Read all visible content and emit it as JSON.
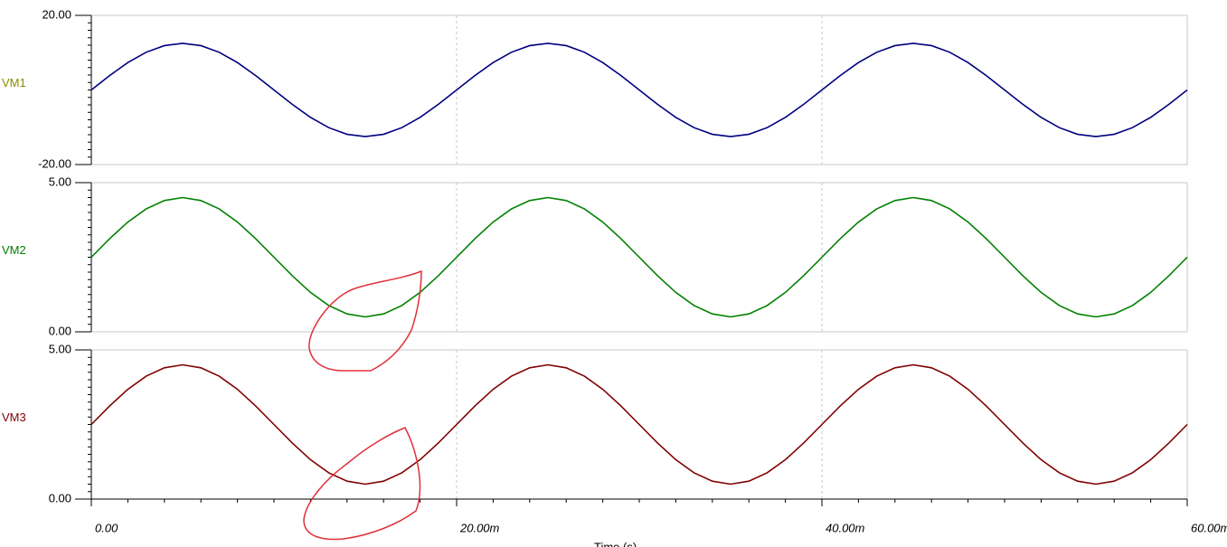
{
  "chart_data": [
    {
      "type": "line",
      "x": [
        0,
        0.001,
        0.002,
        0.003,
        0.004,
        0.005,
        0.006,
        0.007,
        0.008,
        0.009,
        0.01,
        0.011,
        0.012,
        0.013,
        0.014,
        0.015,
        0.016,
        0.017,
        0.018,
        0.019,
        0.02,
        0.021,
        0.022,
        0.023,
        0.024,
        0.025,
        0.026,
        0.027,
        0.028,
        0.029,
        0.03,
        0.031,
        0.032,
        0.033,
        0.034,
        0.035,
        0.036,
        0.037,
        0.038,
        0.039,
        0.04,
        0.041,
        0.042,
        0.043,
        0.044,
        0.045,
        0.046,
        0.047,
        0.048,
        0.049,
        0.05,
        0.051,
        0.052,
        0.053,
        0.054,
        0.055,
        0.056,
        0.057,
        0.058,
        0.059,
        0.06
      ],
      "series": [
        {
          "name": "VM1",
          "color": "#000080",
          "label_color": "#8a8a00",
          "values": [
            0,
            3.86,
            7.35,
            10.11,
            11.89,
            12.5,
            11.89,
            10.11,
            7.35,
            3.86,
            0,
            -3.86,
            -7.35,
            -10.11,
            -11.89,
            -12.5,
            -11.89,
            -10.11,
            -7.35,
            -3.86,
            0,
            3.86,
            7.35,
            10.11,
            11.89,
            12.5,
            11.89,
            10.11,
            7.35,
            3.86,
            0,
            -3.86,
            -7.35,
            -10.11,
            -11.89,
            -12.5,
            -11.89,
            -10.11,
            -7.35,
            -3.86,
            0,
            3.86,
            7.35,
            10.11,
            11.89,
            12.5,
            11.89,
            10.11,
            7.35,
            3.86,
            0,
            -3.86,
            -7.35,
            -10.11,
            -11.89,
            -12.5,
            -11.89,
            -10.11,
            -7.35,
            -3.86,
            0
          ]
        }
      ],
      "xlim": [
        0,
        0.06
      ],
      "xticks": [
        0,
        0.02,
        0.04,
        0.06
      ],
      "ylim": [
        -20,
        20
      ],
      "yticks": [
        {
          "value": -20,
          "label": "-20.00"
        },
        {
          "value": 20,
          "label": "20.00"
        }
      ]
    },
    {
      "type": "line",
      "x": [
        0,
        0.001,
        0.002,
        0.003,
        0.004,
        0.005,
        0.006,
        0.007,
        0.008,
        0.009,
        0.01,
        0.011,
        0.012,
        0.013,
        0.014,
        0.015,
        0.016,
        0.017,
        0.018,
        0.019,
        0.02,
        0.021,
        0.022,
        0.023,
        0.024,
        0.025,
        0.026,
        0.027,
        0.028,
        0.029,
        0.03,
        0.031,
        0.032,
        0.033,
        0.034,
        0.035,
        0.036,
        0.037,
        0.038,
        0.039,
        0.04,
        0.041,
        0.042,
        0.043,
        0.044,
        0.045,
        0.046,
        0.047,
        0.048,
        0.049,
        0.05,
        0.051,
        0.052,
        0.053,
        0.054,
        0.055,
        0.056,
        0.057,
        0.058,
        0.059,
        0.06
      ],
      "series": [
        {
          "name": "VM2",
          "color": "#008000",
          "label_color": "#008000",
          "values": [
            2.5,
            3.12,
            3.68,
            4.12,
            4.4,
            4.5,
            4.4,
            4.12,
            3.68,
            3.12,
            2.5,
            1.88,
            1.32,
            0.88,
            0.6,
            0.5,
            0.6,
            0.88,
            1.32,
            1.88,
            2.5,
            3.12,
            3.68,
            4.12,
            4.4,
            4.5,
            4.4,
            4.12,
            3.68,
            3.12,
            2.5,
            1.88,
            1.32,
            0.88,
            0.6,
            0.5,
            0.6,
            0.88,
            1.32,
            1.88,
            2.5,
            3.12,
            3.68,
            4.12,
            4.4,
            4.5,
            4.4,
            4.12,
            3.68,
            3.12,
            2.5,
            1.88,
            1.32,
            0.88,
            0.6,
            0.5,
            0.6,
            0.88,
            1.32,
            1.88,
            2.5
          ]
        }
      ],
      "xlim": [
        0,
        0.06
      ],
      "xticks": [
        0,
        0.02,
        0.04,
        0.06
      ],
      "ylim": [
        0,
        5
      ],
      "yticks": [
        {
          "value": 0,
          "label": "0.00"
        },
        {
          "value": 5,
          "label": "5.00"
        }
      ]
    },
    {
      "type": "line",
      "x": [
        0,
        0.001,
        0.002,
        0.003,
        0.004,
        0.005,
        0.006,
        0.007,
        0.008,
        0.009,
        0.01,
        0.011,
        0.012,
        0.013,
        0.014,
        0.015,
        0.016,
        0.017,
        0.018,
        0.019,
        0.02,
        0.021,
        0.022,
        0.023,
        0.024,
        0.025,
        0.026,
        0.027,
        0.028,
        0.029,
        0.03,
        0.031,
        0.032,
        0.033,
        0.034,
        0.035,
        0.036,
        0.037,
        0.038,
        0.039,
        0.04,
        0.041,
        0.042,
        0.043,
        0.044,
        0.045,
        0.046,
        0.047,
        0.048,
        0.049,
        0.05,
        0.051,
        0.052,
        0.053,
        0.054,
        0.055,
        0.056,
        0.057,
        0.058,
        0.059,
        0.06
      ],
      "series": [
        {
          "name": "VM3",
          "color": "#800000",
          "label_color": "#800000",
          "values": [
            2.5,
            3.12,
            3.68,
            4.12,
            4.4,
            4.5,
            4.4,
            4.12,
            3.68,
            3.12,
            2.5,
            1.88,
            1.32,
            0.88,
            0.6,
            0.5,
            0.6,
            0.88,
            1.32,
            1.88,
            2.5,
            3.12,
            3.68,
            4.12,
            4.4,
            4.5,
            4.4,
            4.12,
            3.68,
            3.12,
            2.5,
            1.88,
            1.32,
            0.88,
            0.6,
            0.5,
            0.6,
            0.88,
            1.32,
            1.88,
            2.5,
            3.12,
            3.68,
            4.12,
            4.4,
            4.5,
            4.4,
            4.12,
            3.68,
            3.12,
            2.5,
            1.88,
            1.32,
            0.88,
            0.6,
            0.5,
            0.6,
            0.88,
            1.32,
            1.88,
            2.5
          ]
        }
      ],
      "xlim": [
        0,
        0.06
      ],
      "xticks": [
        {
          "value": 0,
          "label": "0.00"
        },
        {
          "value": 0.02,
          "label": "20.00m"
        },
        {
          "value": 0.04,
          "label": "40.00m"
        },
        {
          "value": 0.06,
          "label": "60.00m"
        }
      ],
      "xlabel": "Time (s)",
      "ylim": [
        0,
        5
      ],
      "yticks": [
        {
          "value": 0,
          "label": "0.00"
        },
        {
          "value": 5,
          "label": "5.00"
        }
      ]
    }
  ]
}
